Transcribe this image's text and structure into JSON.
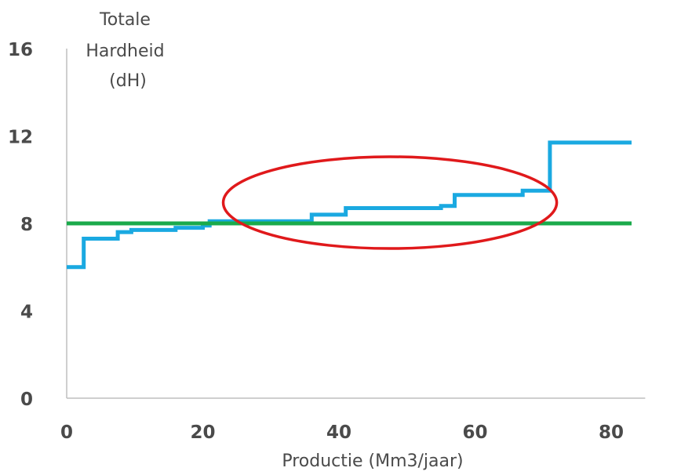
{
  "chart_data": {
    "type": "line",
    "ylabel_lines": [
      "Totale",
      "Hardheid",
      "(dH)"
    ],
    "xlabel": "Productie (Mm3/jaar)",
    "xlim": [
      0,
      85
    ],
    "ylim": [
      0,
      16
    ],
    "x_ticks": [
      0,
      20,
      40,
      60,
      80
    ],
    "y_ticks": [
      0,
      4,
      8,
      12,
      16
    ],
    "grid": false,
    "series": [
      {
        "step": true,
        "color": "#1aa9e1",
        "points": [
          [
            0,
            6.0
          ],
          [
            2.5,
            6.0
          ],
          [
            2.5,
            7.3
          ],
          [
            7.5,
            7.3
          ],
          [
            7.5,
            7.6
          ],
          [
            9.5,
            7.6
          ],
          [
            9.5,
            7.7
          ],
          [
            16,
            7.7
          ],
          [
            16,
            7.8
          ],
          [
            20,
            7.8
          ],
          [
            20,
            7.9
          ],
          [
            21,
            7.9
          ],
          [
            21,
            8.1
          ],
          [
            36,
            8.1
          ],
          [
            36,
            8.4
          ],
          [
            41,
            8.4
          ],
          [
            41,
            8.7
          ],
          [
            55,
            8.7
          ],
          [
            55,
            8.8
          ],
          [
            57,
            8.8
          ],
          [
            57,
            9.3
          ],
          [
            67,
            9.3
          ],
          [
            67,
            9.5
          ],
          [
            71,
            9.5
          ],
          [
            71,
            11.7
          ],
          [
            83,
            11.7
          ]
        ]
      },
      {
        "step": false,
        "color": "#1aaa4b",
        "points": [
          [
            0,
            8.0
          ],
          [
            83,
            8.0
          ]
        ]
      }
    ],
    "annotations": [
      {
        "shape": "ellipse",
        "color": "#e0191b",
        "cx": 47.5,
        "cy": 8.95,
        "rx": 24.5,
        "ry": 2.1
      }
    ]
  }
}
